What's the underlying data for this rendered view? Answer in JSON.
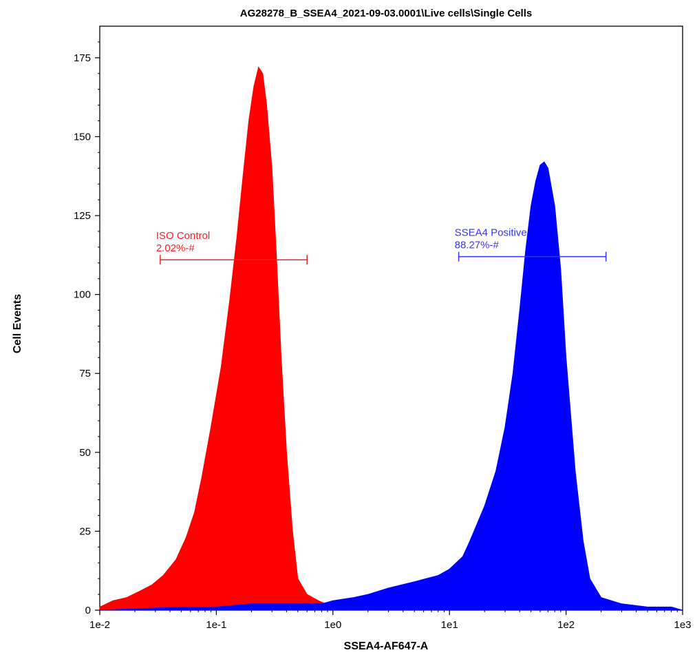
{
  "chart_data": {
    "type": "area",
    "title": "AG28278_B_SSEA4_2021-09-03.0001\\Live cells\\Single Cells",
    "xlabel": "SSEA4-AF647-A",
    "ylabel": "Cell Events",
    "x_scale": "log",
    "xlim": [
      0.01,
      1000
    ],
    "ylim": [
      0,
      185
    ],
    "x_ticks": [
      {
        "value": 0.01,
        "label": "1e-2"
      },
      {
        "value": 0.1,
        "label": "1e-1"
      },
      {
        "value": 1,
        "label": "1e0"
      },
      {
        "value": 10,
        "label": "1e1"
      },
      {
        "value": 100,
        "label": "1e2"
      },
      {
        "value": 1000,
        "label": "1e3"
      }
    ],
    "y_ticks": [
      {
        "value": 0,
        "label": "0"
      },
      {
        "value": 25,
        "label": "25"
      },
      {
        "value": 50,
        "label": "50"
      },
      {
        "value": 75,
        "label": "75"
      },
      {
        "value": 100,
        "label": "100"
      },
      {
        "value": 125,
        "label": "125"
      },
      {
        "value": 150,
        "label": "150"
      },
      {
        "value": 175,
        "label": "175"
      }
    ],
    "series": [
      {
        "color": "#ff0000",
        "x": [
          0.01,
          0.013,
          0.017,
          0.022,
          0.028,
          0.035,
          0.045,
          0.055,
          0.065,
          0.075,
          0.09,
          0.11,
          0.13,
          0.15,
          0.17,
          0.19,
          0.21,
          0.23,
          0.25,
          0.27,
          0.3,
          0.33,
          0.36,
          0.4,
          0.45,
          0.5,
          0.6,
          0.75,
          1.0,
          1.2
        ],
        "y": [
          1,
          3,
          4,
          6,
          8,
          11,
          16,
          23,
          31,
          42,
          58,
          77,
          98,
          118,
          138,
          155,
          166,
          172,
          170,
          160,
          140,
          110,
          80,
          50,
          25,
          10,
          5,
          3,
          1,
          0
        ]
      },
      {
        "color": "#0000ff",
        "x": [
          0.01,
          0.05,
          0.1,
          0.2,
          0.3,
          0.5,
          0.8,
          1.0,
          1.5,
          2,
          3,
          5,
          8,
          10,
          13,
          15,
          20,
          25,
          30,
          35,
          40,
          45,
          50,
          55,
          60,
          65,
          70,
          80,
          90,
          100,
          120,
          140,
          160,
          200,
          300,
          500,
          800,
          1000
        ],
        "y": [
          0,
          1,
          1,
          2,
          2,
          2,
          2,
          3,
          4,
          5,
          7,
          9,
          11,
          13,
          17,
          22,
          33,
          44,
          58,
          75,
          95,
          114,
          128,
          136,
          141,
          142,
          140,
          128,
          108,
          80,
          44,
          22,
          10,
          4,
          2,
          1,
          1,
          0
        ]
      }
    ],
    "gates": [
      {
        "name": "ISO Control",
        "value": "2.02%-#",
        "color": "#ff2020",
        "range": [
          0.033,
          0.6
        ],
        "y": 111
      },
      {
        "name": "SSEA4 Positive",
        "value": "88.27%-#",
        "color": "#3333ff",
        "range": [
          12,
          220
        ],
        "y": 112
      }
    ]
  }
}
